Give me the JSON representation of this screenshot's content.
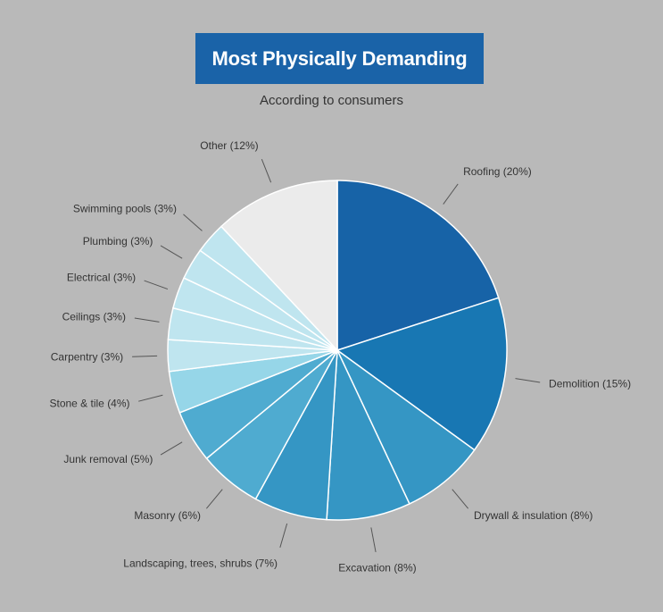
{
  "chart_data": {
    "type": "pie",
    "title": "Most Physically Demanding",
    "subtitle": "According to consumers",
    "slices": [
      {
        "label": "Roofing (20%)",
        "value": 20,
        "color": "#1763a7"
      },
      {
        "label": "Demolition (15%)",
        "value": 15,
        "color": "#1877b3"
      },
      {
        "label": "Drywall & insulation (8%)",
        "value": 8,
        "color": "#3596c4"
      },
      {
        "label": "Excavation (8%)",
        "value": 8,
        "color": "#3596c4"
      },
      {
        "label": "Landscaping, trees, shrubs (7%)",
        "value": 7,
        "color": "#3596c4"
      },
      {
        "label": "Masonry (6%)",
        "value": 6,
        "color": "#4fabd0"
      },
      {
        "label": "Junk removal (5%)",
        "value": 5,
        "color": "#4fabd0"
      },
      {
        "label": "Stone & tile (4%)",
        "value": 4,
        "color": "#96d6e8"
      },
      {
        "label": "Carpentry (3%)",
        "value": 3,
        "color": "#bfe5ef"
      },
      {
        "label": "Ceilings (3%)",
        "value": 3,
        "color": "#bfe5ef"
      },
      {
        "label": "Electrical (3%)",
        "value": 3,
        "color": "#bfe5ef"
      },
      {
        "label": "Plumbing (3%)",
        "value": 3,
        "color": "#bfe5ef"
      },
      {
        "label": "Swimming pools (3%)",
        "value": 3,
        "color": "#bfe5ef"
      },
      {
        "label": "Other (12%)",
        "value": 12,
        "color": "#ebebeb"
      }
    ]
  }
}
